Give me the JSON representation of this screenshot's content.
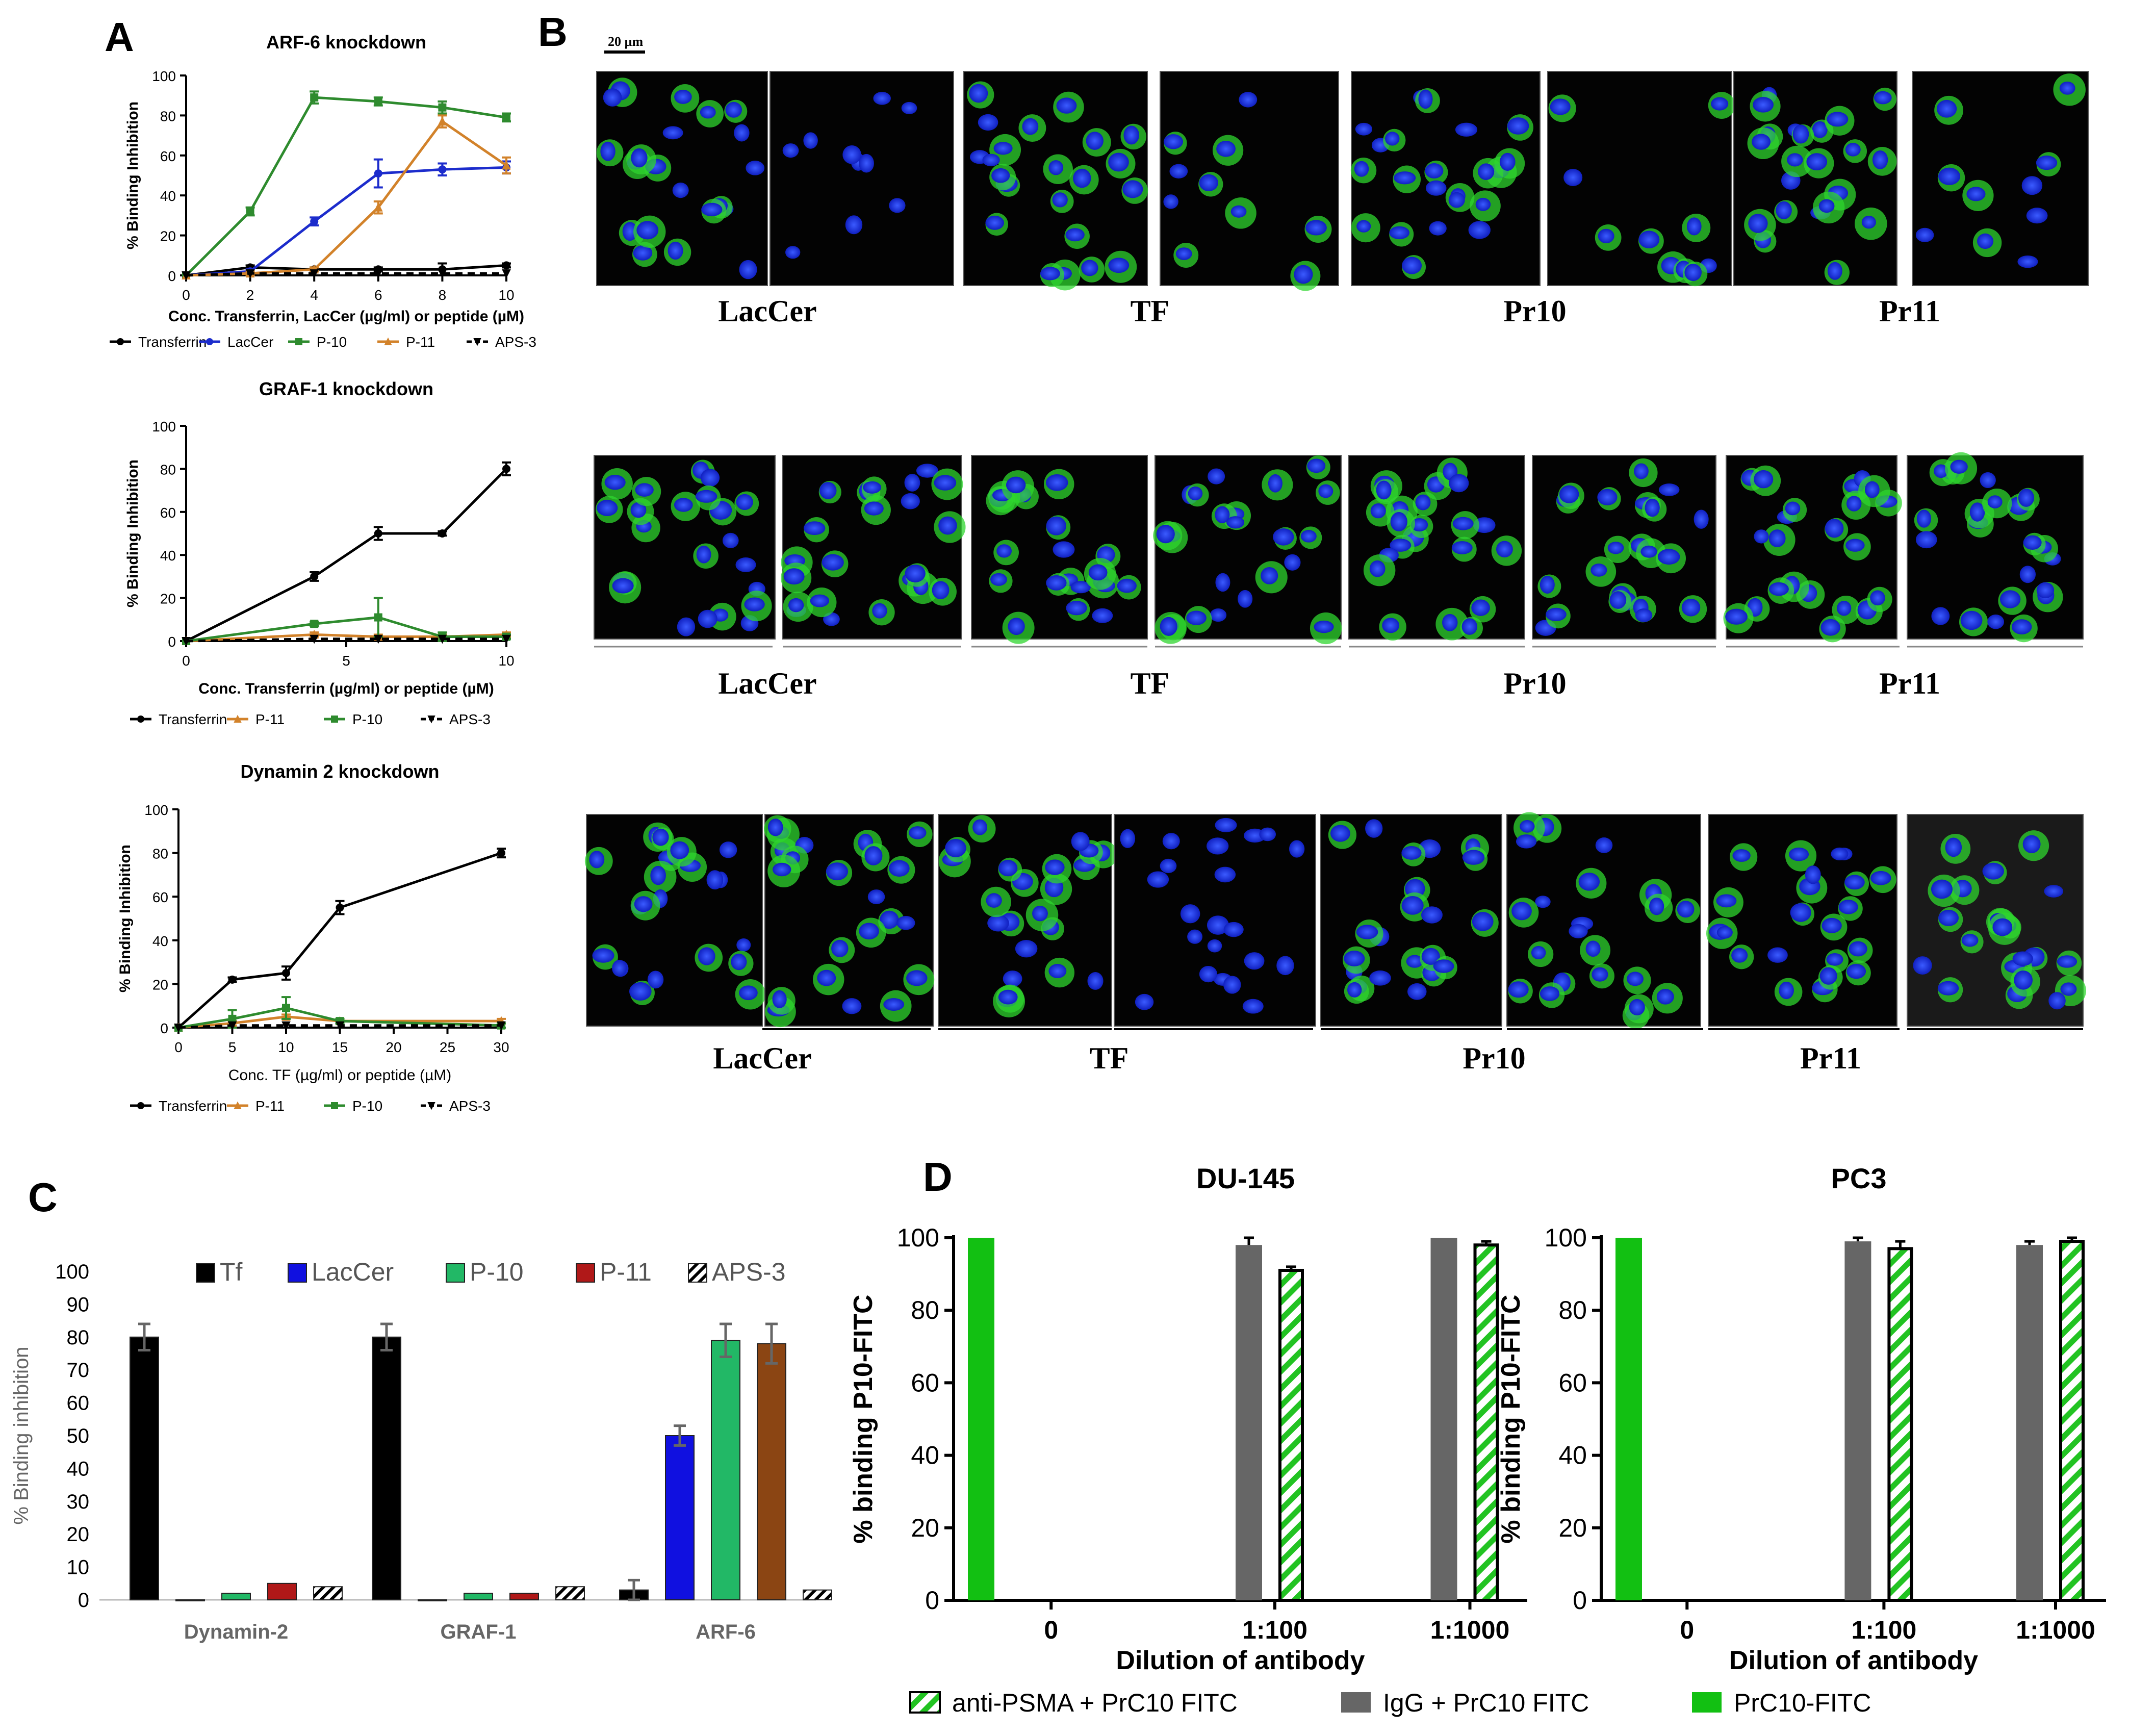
{
  "panel_labels": {
    "a": "A",
    "b": "B",
    "c": "C",
    "d": "D"
  },
  "scale_bar": "20 µm",
  "colors": {
    "transferrin": "#000000",
    "lacCer": "#1c2ccc",
    "p10": "#2e8b2e",
    "p11": "#d2822a",
    "aps3": "#000000",
    "bar_tf": "#000000",
    "bar_laccer": "#1010e0",
    "bar_p10": "#22b866",
    "bar_p11": "#b01818",
    "bar_p11_arf": "#8b4513",
    "psma": "#22c322",
    "igg": "#666666",
    "prc10": "#12c012"
  },
  "microscopy": {
    "rows": [
      {
        "labels": [
          "LacCer",
          "TF",
          "Pr10",
          "Pr11"
        ]
      },
      {
        "labels": [
          "LacCer",
          "TF",
          "Pr10",
          "Pr11"
        ]
      },
      {
        "labels": [
          "LacCer",
          "TF",
          "Pr10",
          "Pr11"
        ]
      }
    ]
  },
  "chart_data": [
    {
      "id": "A1",
      "type": "line",
      "title": "ARF-6 knockdown",
      "xlabel": "Conc. Transferrin, LacCer (µg/ml) or peptide (µM)",
      "ylabel": "% Binding Inhibition",
      "xlim": [
        0,
        10
      ],
      "ylim": [
        0,
        100
      ],
      "xticks": [
        0,
        2,
        4,
        6,
        8,
        10
      ],
      "yticks": [
        0,
        20,
        40,
        60,
        80,
        100
      ],
      "series": [
        {
          "name": "Transferrin",
          "color": "#000000",
          "marker": "circle",
          "x": [
            0,
            2,
            4,
            6,
            8,
            10
          ],
          "y": [
            0,
            4,
            3,
            3,
            3,
            5
          ],
          "err": [
            0,
            1,
            1,
            1,
            3,
            1
          ]
        },
        {
          "name": "LacCer",
          "color": "#1c2ccc",
          "marker": "circle",
          "x": [
            0,
            2,
            4,
            6,
            8,
            10
          ],
          "y": [
            0,
            2,
            27,
            51,
            53,
            54
          ],
          "err": [
            0,
            1,
            2,
            7,
            3,
            3
          ]
        },
        {
          "name": "P-10",
          "color": "#2e8b2e",
          "marker": "square",
          "x": [
            0,
            2,
            4,
            6,
            8,
            10
          ],
          "y": [
            0,
            32,
            89,
            87,
            84,
            79
          ],
          "err": [
            0,
            2,
            3,
            2,
            3,
            2
          ]
        },
        {
          "name": "P-11",
          "color": "#d2822a",
          "marker": "triangle",
          "x": [
            0,
            2,
            4,
            6,
            8,
            10
          ],
          "y": [
            0,
            1,
            3,
            34,
            77,
            55
          ],
          "err": [
            0,
            1,
            1,
            3,
            3,
            4
          ]
        },
        {
          "name": "APS-3",
          "color": "#000000",
          "marker": "tri-down",
          "dashed": true,
          "x": [
            0,
            2,
            4,
            6,
            8,
            10
          ],
          "y": [
            0,
            1,
            1,
            1,
            1,
            1
          ],
          "err": [
            0,
            0,
            0,
            0,
            0,
            0
          ]
        }
      ]
    },
    {
      "id": "A2",
      "type": "line",
      "title": "GRAF-1 knockdown",
      "xlabel": "Conc. Transferrin (µg/ml) or peptide (µM)",
      "ylabel": "% Binding Inhibition",
      "xlim": [
        0,
        10
      ],
      "ylim": [
        0,
        100
      ],
      "xticks": [
        0,
        5,
        10
      ],
      "yticks": [
        0,
        20,
        40,
        60,
        80,
        100
      ],
      "series": [
        {
          "name": "Transferrin",
          "color": "#000000",
          "marker": "circle",
          "x": [
            0,
            4,
            6,
            8,
            10
          ],
          "y": [
            0,
            30,
            50,
            50,
            80
          ],
          "err": [
            0,
            2,
            3,
            1,
            3
          ]
        },
        {
          "name": "P-11",
          "color": "#d2822a",
          "marker": "triangle",
          "x": [
            0,
            4,
            6,
            8,
            10
          ],
          "y": [
            0,
            3,
            2,
            2,
            3
          ],
          "err": [
            0,
            1,
            1,
            1,
            1
          ]
        },
        {
          "name": "P-10",
          "color": "#2e8b2e",
          "marker": "square",
          "x": [
            0,
            4,
            6,
            8,
            10
          ],
          "y": [
            0,
            8,
            11,
            2,
            2
          ],
          "err": [
            0,
            1,
            9,
            2,
            1
          ]
        },
        {
          "name": "APS-3",
          "color": "#000000",
          "marker": "tri-down",
          "dashed": true,
          "x": [
            0,
            4,
            6,
            8,
            10
          ],
          "y": [
            0,
            1,
            1,
            1,
            1
          ],
          "err": [
            0,
            0,
            0,
            0,
            0
          ]
        }
      ]
    },
    {
      "id": "A3",
      "type": "line",
      "title": "Dynamin 2 knockdown",
      "xlabel": "Conc. TF (µg/ml) or peptide (µM)",
      "ylabel": "% Binding Inhibition",
      "xlim": [
        0,
        30
      ],
      "ylim": [
        0,
        100
      ],
      "xticks": [
        0,
        5,
        10,
        15,
        20,
        25,
        30
      ],
      "yticks": [
        0,
        20,
        40,
        60,
        80,
        100
      ],
      "series": [
        {
          "name": "Transferrin",
          "color": "#000000",
          "marker": "circle",
          "x": [
            0,
            5,
            10,
            15,
            30
          ],
          "y": [
            0,
            22,
            25,
            55,
            80
          ],
          "err": [
            0,
            1,
            3,
            3,
            2
          ]
        },
        {
          "name": "P-11",
          "color": "#d2822a",
          "marker": "triangle",
          "x": [
            0,
            5,
            10,
            15,
            30
          ],
          "y": [
            0,
            2,
            5,
            3,
            3
          ],
          "err": [
            0,
            1,
            1,
            1,
            1
          ]
        },
        {
          "name": "P-10",
          "color": "#2e8b2e",
          "marker": "square",
          "x": [
            0,
            5,
            10,
            15,
            30
          ],
          "y": [
            0,
            4,
            9,
            3,
            1
          ],
          "err": [
            0,
            4,
            5,
            1,
            1
          ]
        },
        {
          "name": "APS-3",
          "color": "#000000",
          "marker": "tri-down",
          "dashed": true,
          "x": [
            0,
            5,
            10,
            15,
            30
          ],
          "y": [
            0,
            1,
            1,
            1,
            1
          ],
          "err": [
            0,
            0,
            0,
            0,
            0
          ]
        }
      ]
    },
    {
      "id": "C",
      "type": "bar",
      "ylabel": "% Binding inhibition",
      "ylim": [
        0,
        100
      ],
      "yticks": [
        0,
        10,
        20,
        30,
        40,
        50,
        60,
        70,
        80,
        90,
        100
      ],
      "categories": [
        "Dynamin-2",
        "GRAF-1",
        "ARF-6"
      ],
      "legend": [
        "Tf",
        "LacCer",
        "P-10",
        "P-11",
        "APS-3"
      ],
      "series": [
        {
          "name": "Tf",
          "color": "#000000",
          "values": [
            80,
            80,
            3
          ],
          "err": [
            4,
            4,
            3
          ]
        },
        {
          "name": "LacCer",
          "color": "#1010e0",
          "values": [
            0,
            0,
            50
          ],
          "err": [
            0,
            0,
            3
          ]
        },
        {
          "name": "P-10",
          "color": "#22b866",
          "values": [
            2,
            2,
            79
          ],
          "err": [
            0,
            0,
            5
          ]
        },
        {
          "name": "P-11",
          "color": "#b01818",
          "values": [
            5,
            2,
            78
          ],
          "err": [
            0,
            0,
            6
          ]
        },
        {
          "name": "APS-3",
          "color": "#ffffff",
          "hatch": true,
          "values": [
            4,
            4,
            3
          ],
          "err": [
            0,
            0,
            0
          ]
        }
      ]
    },
    {
      "id": "D1",
      "type": "bar",
      "title": "DU-145",
      "xlabel": "Dilution of antibody",
      "ylabel": "% binding P10-FITC",
      "ylim": [
        0,
        100
      ],
      "yticks": [
        0,
        20,
        40,
        60,
        80,
        100
      ],
      "categories": [
        "0",
        "1:100",
        "1:1000"
      ],
      "series": [
        {
          "name": "PrC10-FITC",
          "values": [
            100,
            0,
            0
          ],
          "err": [
            0,
            0,
            0
          ]
        },
        {
          "name": "IgG +  PrC10 FITC",
          "values": [
            0,
            98,
            100
          ],
          "err": [
            0,
            2,
            0
          ]
        },
        {
          "name": "anti-PSMA + PrC10 FITC",
          "values": [
            0,
            91,
            98
          ],
          "err": [
            0,
            1,
            1
          ]
        }
      ]
    },
    {
      "id": "D2",
      "type": "bar",
      "title": "PC3",
      "xlabel": "Dilution of antibody",
      "ylabel": "% binding P10-FITC",
      "ylim": [
        0,
        100
      ],
      "yticks": [
        0,
        20,
        40,
        60,
        80,
        100
      ],
      "categories": [
        "0",
        "1:100",
        "1:1000"
      ],
      "series": [
        {
          "name": "PrC10-FITC",
          "values": [
            100,
            0,
            0
          ],
          "err": [
            0,
            0,
            0
          ]
        },
        {
          "name": "IgG +  PrC10 FITC",
          "values": [
            0,
            99,
            98
          ],
          "err": [
            0,
            1,
            1
          ]
        },
        {
          "name": "anti-PSMA + PrC10 FITC",
          "values": [
            0,
            97,
            99
          ],
          "err": [
            0,
            2,
            1
          ]
        }
      ]
    }
  ],
  "legend_d": [
    "anti-PSMA + PrC10 FITC",
    "IgG +  PrC10 FITC",
    "PrC10-FITC"
  ]
}
